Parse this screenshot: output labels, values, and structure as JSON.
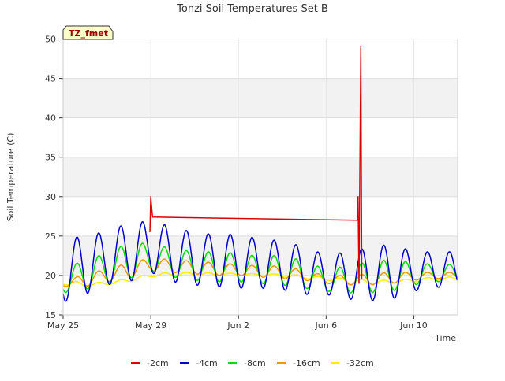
{
  "chart_data": {
    "type": "line",
    "title": "Tonzi Soil Temperatures Set B",
    "xlabel": "Time",
    "ylabel": "Soil Temperature (C)",
    "ylim": [
      15,
      50
    ],
    "xlim": [
      "2024-05-25",
      "2024-06-12"
    ],
    "x_ticks": [
      {
        "date": "2024-05-25",
        "label": "May 25"
      },
      {
        "date": "2024-05-29",
        "label": "May 29"
      },
      {
        "date": "2024-06-02",
        "label": "Jun 2"
      },
      {
        "date": "2024-06-06",
        "label": "Jun 6"
      },
      {
        "date": "2024-06-10",
        "label": "Jun 10"
      }
    ],
    "y_ticks": [
      15,
      20,
      25,
      30,
      35,
      40,
      45,
      50
    ],
    "grid": true,
    "legend_position": "bottom",
    "badge": "TZ_fmet",
    "series": [
      {
        "name": "-2cm",
        "color": "#dd0000",
        "points": [
          [
            "2024-05-28 23:00",
            25.5
          ],
          [
            "2024-05-29 00:00",
            30.0
          ],
          [
            "2024-05-29 01:00",
            28.5
          ],
          [
            "2024-05-29 02:00",
            27.4
          ],
          [
            "2024-06-07 10:00",
            27.0
          ],
          [
            "2024-06-07 11:00",
            30.0
          ],
          [
            "2024-06-07 12:00",
            19.0
          ],
          [
            "2024-06-07 14:00",
            49.0
          ],
          [
            "2024-06-07 15:00",
            19.5
          ]
        ]
      },
      {
        "name": "-4cm",
        "color": "#0000cc",
        "days": [
          {
            "day": "2024-05-25",
            "min": 16.6,
            "max": 24.0
          },
          {
            "day": "2024-05-26",
            "min": 17.6,
            "max": 25.4
          },
          {
            "day": "2024-05-27",
            "min": 18.8,
            "max": 25.4
          },
          {
            "day": "2024-05-28",
            "min": 19.2,
            "max": 26.8
          },
          {
            "day": "2024-05-29",
            "min": 20.4,
            "max": 26.8
          },
          {
            "day": "2024-05-30",
            "min": 19.2,
            "max": 26.2
          },
          {
            "day": "2024-05-31",
            "min": 18.8,
            "max": 25.4
          },
          {
            "day": "2024-06-01",
            "min": 18.6,
            "max": 25.2
          },
          {
            "day": "2024-06-02",
            "min": 18.4,
            "max": 25.2
          },
          {
            "day": "2024-06-03",
            "min": 18.4,
            "max": 24.6
          },
          {
            "day": "2024-06-04",
            "min": 18.2,
            "max": 24.4
          },
          {
            "day": "2024-06-05",
            "min": 17.6,
            "max": 23.6
          },
          {
            "day": "2024-06-06",
            "min": 17.6,
            "max": 22.6
          },
          {
            "day": "2024-06-07",
            "min": 17.0,
            "max": 23.0
          },
          {
            "day": "2024-06-08",
            "min": 16.8,
            "max": 23.6
          },
          {
            "day": "2024-06-09",
            "min": 17.0,
            "max": 24.0
          },
          {
            "day": "2024-06-10",
            "min": 18.0,
            "max": 23.0
          },
          {
            "day": "2024-06-11",
            "min": 18.5,
            "max": 23.0
          }
        ]
      },
      {
        "name": "-8cm",
        "color": "#00dd00",
        "days": [
          {
            "day": "2024-05-25",
            "min": 17.8,
            "max": 20.8
          },
          {
            "day": "2024-05-26",
            "min": 18.2,
            "max": 22.0
          },
          {
            "day": "2024-05-27",
            "min": 19.0,
            "max": 22.8
          },
          {
            "day": "2024-05-28",
            "min": 19.6,
            "max": 24.2
          },
          {
            "day": "2024-05-29",
            "min": 20.6,
            "max": 24.0
          },
          {
            "day": "2024-05-30",
            "min": 19.8,
            "max": 23.4
          },
          {
            "day": "2024-05-31",
            "min": 19.4,
            "max": 23.0
          },
          {
            "day": "2024-06-01",
            "min": 19.2,
            "max": 23.0
          },
          {
            "day": "2024-06-02",
            "min": 19.2,
            "max": 22.8
          },
          {
            "day": "2024-06-03",
            "min": 19.0,
            "max": 22.4
          },
          {
            "day": "2024-06-04",
            "min": 18.8,
            "max": 22.6
          },
          {
            "day": "2024-06-05",
            "min": 18.4,
            "max": 21.8
          },
          {
            "day": "2024-06-06",
            "min": 18.0,
            "max": 20.8
          },
          {
            "day": "2024-06-07",
            "min": 17.8,
            "max": 21.2
          },
          {
            "day": "2024-06-08",
            "min": 17.8,
            "max": 21.8
          },
          {
            "day": "2024-06-09",
            "min": 18.0,
            "max": 22.0
          },
          {
            "day": "2024-06-10",
            "min": 18.8,
            "max": 21.6
          },
          {
            "day": "2024-06-11",
            "min": 19.2,
            "max": 21.4
          }
        ]
      },
      {
        "name": "-16cm",
        "color": "#ee9900",
        "days": [
          {
            "day": "2024-05-25",
            "min": 18.6,
            "max": 19.2
          },
          {
            "day": "2024-05-26",
            "min": 18.6,
            "max": 20.2
          },
          {
            "day": "2024-05-27",
            "min": 19.2,
            "max": 20.8
          },
          {
            "day": "2024-05-28",
            "min": 19.6,
            "max": 21.6
          },
          {
            "day": "2024-05-29",
            "min": 20.6,
            "max": 22.2
          },
          {
            "day": "2024-05-30",
            "min": 20.4,
            "max": 22.0
          },
          {
            "day": "2024-05-31",
            "min": 20.2,
            "max": 21.8
          },
          {
            "day": "2024-06-01",
            "min": 20.0,
            "max": 21.6
          },
          {
            "day": "2024-06-02",
            "min": 20.0,
            "max": 21.4
          },
          {
            "day": "2024-06-03",
            "min": 19.8,
            "max": 21.2
          },
          {
            "day": "2024-06-04",
            "min": 19.6,
            "max": 21.2
          },
          {
            "day": "2024-06-05",
            "min": 19.4,
            "max": 20.6
          },
          {
            "day": "2024-06-06",
            "min": 19.0,
            "max": 20.0
          },
          {
            "day": "2024-06-07",
            "min": 18.8,
            "max": 20.0
          },
          {
            "day": "2024-06-08",
            "min": 18.8,
            "max": 20.2
          },
          {
            "day": "2024-06-09",
            "min": 19.0,
            "max": 20.4
          },
          {
            "day": "2024-06-10",
            "min": 19.4,
            "max": 20.4
          },
          {
            "day": "2024-06-11",
            "min": 19.6,
            "max": 20.4
          }
        ]
      },
      {
        "name": "-32cm",
        "color": "#ffee00",
        "days": [
          {
            "day": "2024-05-25",
            "min": 18.8,
            "max": 19.6
          },
          {
            "day": "2024-05-26",
            "min": 18.6,
            "max": 19.0
          },
          {
            "day": "2024-05-27",
            "min": 18.8,
            "max": 19.2
          },
          {
            "day": "2024-05-28",
            "min": 19.2,
            "max": 19.6
          },
          {
            "day": "2024-05-29",
            "min": 19.8,
            "max": 20.2
          },
          {
            "day": "2024-05-30",
            "min": 20.0,
            "max": 20.4
          },
          {
            "day": "2024-05-31",
            "min": 20.0,
            "max": 20.4
          },
          {
            "day": "2024-06-01",
            "min": 20.0,
            "max": 20.3
          },
          {
            "day": "2024-06-02",
            "min": 20.0,
            "max": 20.3
          },
          {
            "day": "2024-06-03",
            "min": 20.0,
            "max": 20.2
          },
          {
            "day": "2024-06-04",
            "min": 19.8,
            "max": 20.2
          },
          {
            "day": "2024-06-05",
            "min": 19.6,
            "max": 20.0
          },
          {
            "day": "2024-06-06",
            "min": 19.4,
            "max": 19.8
          },
          {
            "day": "2024-06-07",
            "min": 19.0,
            "max": 19.6
          },
          {
            "day": "2024-06-08",
            "min": 18.9,
            "max": 19.4
          },
          {
            "day": "2024-06-09",
            "min": 19.0,
            "max": 19.4
          },
          {
            "day": "2024-06-10",
            "min": 19.2,
            "max": 19.6
          },
          {
            "day": "2024-06-11",
            "min": 19.4,
            "max": 19.8
          }
        ]
      }
    ]
  }
}
